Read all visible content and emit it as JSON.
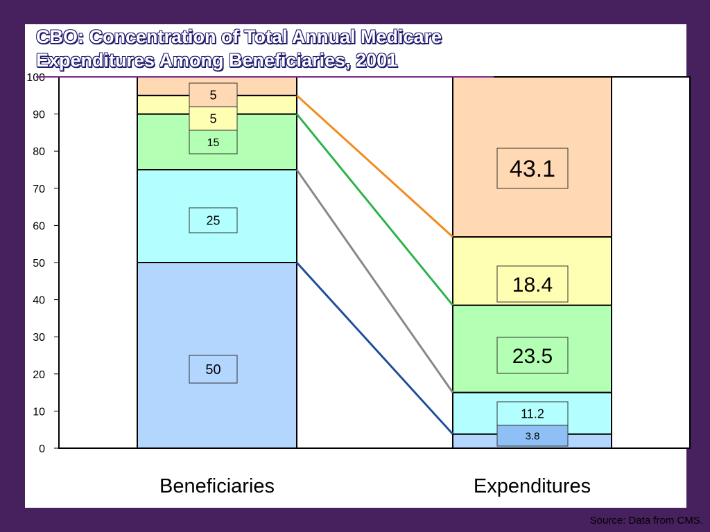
{
  "title": "CBO: Concentration of Total Annual Medicare Expenditures Among Beneficiaries, 2001",
  "source": "Source: Data from CMS.",
  "colors": {
    "background": "#47215e",
    "segments": [
      "#b3d6ff",
      "#b3ffff",
      "#b3ffb3",
      "#ffffb3",
      "#ffd9b3"
    ],
    "connectors": [
      "#1f4e9a",
      "#888888",
      "#2db34a",
      "#f28a1e"
    ]
  },
  "chart_data": {
    "type": "bar",
    "stacked": true,
    "categories": [
      "Beneficiaries",
      "Expenditures"
    ],
    "ylim": [
      0,
      100
    ],
    "yticks": [
      "0",
      "10",
      "20",
      "30",
      "40",
      "50",
      "60",
      "70",
      "80",
      "90",
      "100"
    ],
    "series": [
      {
        "values": [
          50,
          3.8
        ],
        "labels": [
          "50",
          "3.8"
        ]
      },
      {
        "values": [
          25,
          11.2
        ],
        "labels": [
          "25",
          "11.2"
        ]
      },
      {
        "values": [
          15,
          23.5
        ],
        "labels": [
          "15",
          "23.5"
        ]
      },
      {
        "values": [
          5,
          18.4
        ],
        "labels": [
          "5",
          "18.4"
        ]
      },
      {
        "values": [
          5,
          43.1
        ],
        "labels": [
          "5",
          "43.1"
        ]
      }
    ],
    "connectors": [
      {
        "from": 50,
        "to": 3.8
      },
      {
        "from": 75,
        "to": 15
      },
      {
        "from": 90,
        "to": 38.5
      },
      {
        "from": 95,
        "to": 56.9
      }
    ]
  }
}
